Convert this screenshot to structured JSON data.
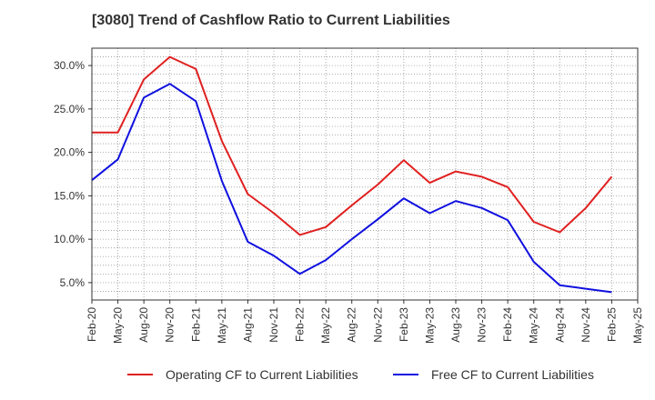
{
  "title": "[3080]  Trend of Cashflow Ratio to Current Liabilities",
  "chart_data": {
    "type": "line",
    "title": "[3080]  Trend of Cashflow Ratio to Current Liabilities",
    "categories": [
      "Feb-20",
      "May-20",
      "Aug-20",
      "Nov-20",
      "Feb-21",
      "May-21",
      "Aug-21",
      "Nov-21",
      "Feb-22",
      "May-22",
      "Aug-22",
      "Nov-22",
      "Feb-23",
      "May-23",
      "Aug-23",
      "Nov-23",
      "Feb-24",
      "May-24",
      "Aug-24",
      "Nov-24",
      "Feb-25",
      "May-25"
    ],
    "ylim": [
      3.0,
      32.0
    ],
    "yticks": [
      5.0,
      10.0,
      15.0,
      20.0,
      25.0,
      30.0
    ],
    "ytick_labels": [
      "5.0%",
      "10.0%",
      "15.0%",
      "20.0%",
      "25.0%",
      "30.0%"
    ],
    "grid": true,
    "legend_position": "bottom",
    "series": [
      {
        "name": "Operating CF to Current Liabilities",
        "color": "#e02020",
        "values": [
          22.3,
          22.3,
          28.4,
          31.0,
          29.6,
          21.3,
          15.2,
          13.0,
          10.5,
          11.4,
          13.9,
          16.3,
          19.1,
          16.5,
          17.8,
          17.2,
          16.0,
          12.0,
          10.8,
          13.6,
          17.2,
          null
        ]
      },
      {
        "name": "Free CF to Current Liabilities",
        "color": "#1010e0",
        "values": [
          16.8,
          19.2,
          26.3,
          27.9,
          25.9,
          16.7,
          9.7,
          8.1,
          6.0,
          7.6,
          10.0,
          12.3,
          14.7,
          13.0,
          14.4,
          13.6,
          12.2,
          7.4,
          4.7,
          4.3,
          3.9,
          null
        ]
      }
    ]
  }
}
